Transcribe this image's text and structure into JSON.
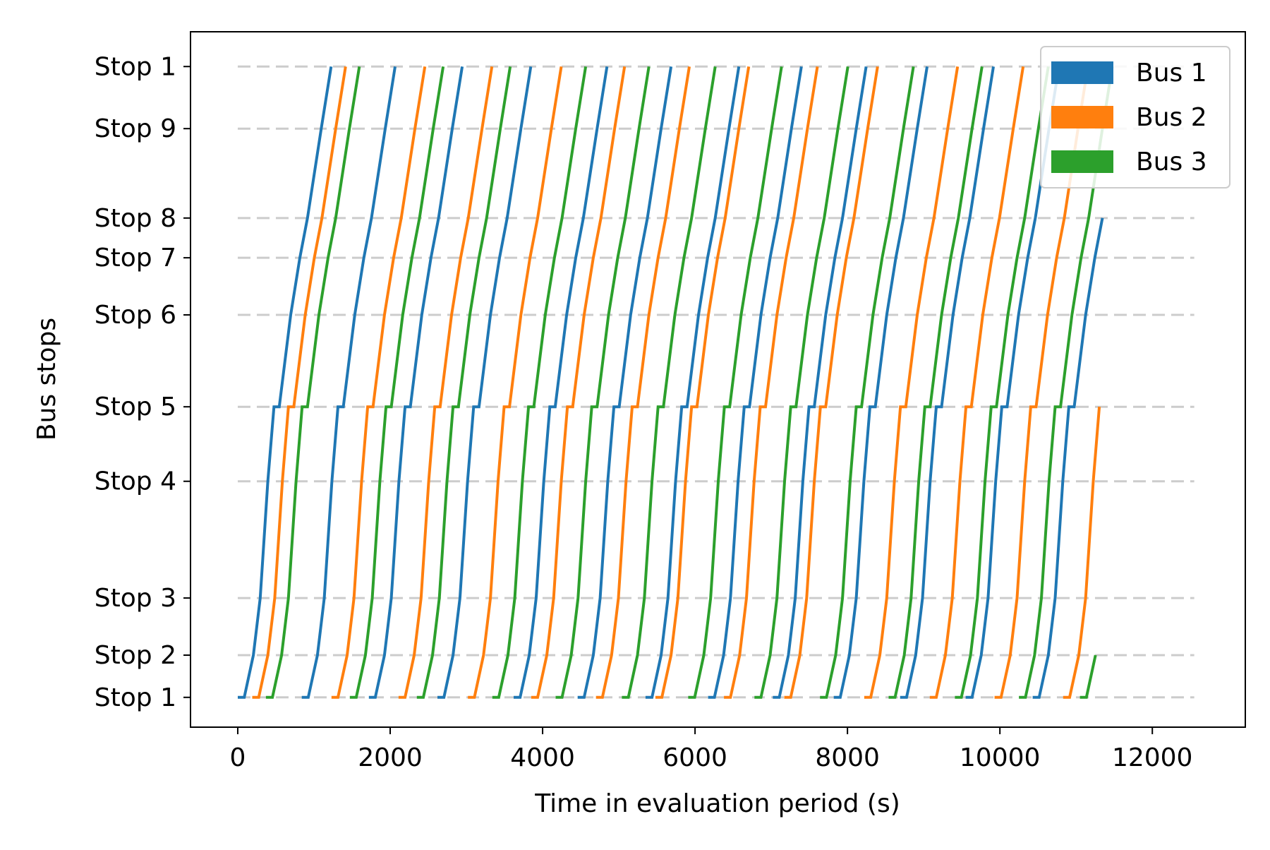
{
  "chart_data": {
    "type": "line",
    "title": "",
    "xlabel": "Time in evaluation period (s)",
    "ylabel": "Bus stops",
    "xlim": [
      -620,
      13220
    ],
    "xticks": [
      0,
      2000,
      4000,
      6000,
      8000,
      10000,
      12000
    ],
    "xtick_labels": [
      "0",
      "2000",
      "4000",
      "6000",
      "8000",
      "10000",
      "12000"
    ],
    "ylim": [
      -0.6,
      13.4
    ],
    "stop_lines": [
      {
        "label": "Stop 1",
        "pos": 0
      },
      {
        "label": "Stop 2",
        "pos": 0.85
      },
      {
        "label": "Stop 3",
        "pos": 2.0
      },
      {
        "label": "Stop 4",
        "pos": 4.35
      },
      {
        "label": "Stop 5",
        "pos": 5.85
      },
      {
        "label": "Stop 6",
        "pos": 7.7
      },
      {
        "label": "Stop 7",
        "pos": 8.85
      },
      {
        "label": "Stop 8",
        "pos": 9.65
      },
      {
        "label": "Stop 9",
        "pos": 11.45
      },
      {
        "label": "Stop 1",
        "pos": 12.7
      }
    ],
    "gridlines": "dashed horizontal at stop positions",
    "legend_position": "top-right",
    "series": [
      {
        "name": "Bus 1",
        "color": "#1f77b4",
        "trip_starts": [
          0,
          840,
          1720,
          2620,
          3620,
          4460,
          5350,
          6170,
          7020,
          7820,
          8690,
          9550,
          10430
        ],
        "last_trip_end_stop": 9.0
      },
      {
        "name": "Bus 2",
        "color": "#ff7f0e",
        "trip_starts": [
          190,
          1230,
          2110,
          3020,
          3850,
          4700,
          5480,
          6380,
          7170,
          8220,
          9080,
          9930,
          10830
        ],
        "last_trip_end_stop": 4.4
      },
      {
        "name": "Bus 3",
        "color": "#2ca02c",
        "trip_starts": [
          370,
          1470,
          2350,
          3340,
          4170,
          5040,
          5910,
          6780,
          7640,
          8540,
          9410,
          10250,
          11050
        ],
        "last_trip_end_stop": 0.85
      }
    ]
  }
}
